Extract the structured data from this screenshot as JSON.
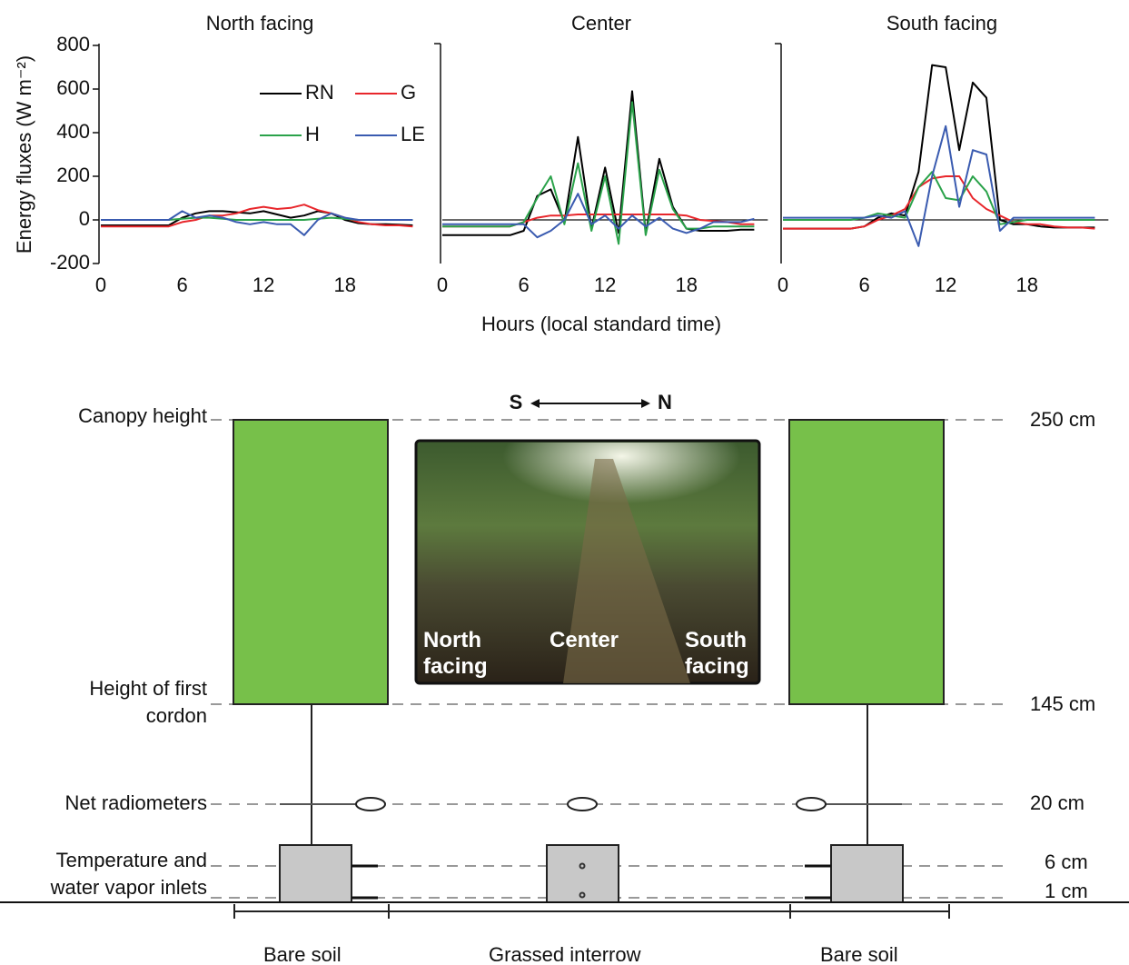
{
  "chart_data": [
    {
      "type": "line",
      "title": "North facing",
      "ylabel": "Energy fluxes (W m⁻²)",
      "x": [
        0,
        1,
        2,
        3,
        4,
        5,
        6,
        7,
        8,
        9,
        10,
        11,
        12,
        13,
        14,
        15,
        16,
        17,
        18,
        19,
        20,
        21,
        22,
        23
      ],
      "xlim": [
        0,
        24
      ],
      "xticks": [
        0,
        6,
        12,
        18
      ],
      "ylim": [
        -200,
        800
      ],
      "yticks": [
        -200,
        0,
        200,
        400,
        600,
        800
      ],
      "legend": true,
      "series": [
        {
          "name": "RN",
          "color": "#000000",
          "values": [
            -25,
            -25,
            -25,
            -25,
            -25,
            -25,
            10,
            30,
            40,
            40,
            35,
            30,
            40,
            25,
            10,
            20,
            40,
            30,
            0,
            -15,
            -20,
            -20,
            -22,
            -25
          ]
        },
        {
          "name": "G",
          "color": "#e8262b",
          "values": [
            -30,
            -30,
            -30,
            -30,
            -30,
            -30,
            -10,
            0,
            20,
            20,
            30,
            50,
            60,
            50,
            55,
            70,
            45,
            30,
            10,
            -10,
            -20,
            -25,
            -25,
            -30
          ]
        },
        {
          "name": "H",
          "color": "#2aa24a",
          "values": [
            0,
            0,
            0,
            0,
            0,
            0,
            5,
            10,
            10,
            5,
            0,
            0,
            0,
            0,
            0,
            0,
            5,
            10,
            5,
            0,
            0,
            0,
            0,
            0
          ]
        },
        {
          "name": "LE",
          "color": "#3a5bb0",
          "values": [
            0,
            0,
            0,
            0,
            0,
            0,
            40,
            10,
            20,
            10,
            -10,
            -20,
            -10,
            -20,
            -20,
            -70,
            0,
            30,
            10,
            0,
            0,
            0,
            0,
            0
          ]
        }
      ]
    },
    {
      "type": "line",
      "title": "Center",
      "xlabel": "Hours (local standard time)",
      "x": [
        0,
        1,
        2,
        3,
        4,
        5,
        6,
        7,
        8,
        9,
        10,
        11,
        12,
        13,
        14,
        15,
        16,
        17,
        18,
        19,
        20,
        21,
        22,
        23
      ],
      "xlim": [
        0,
        24
      ],
      "xticks": [
        0,
        6,
        12,
        18
      ],
      "ylim": [
        -200,
        800
      ],
      "zero_line": true,
      "series": [
        {
          "color": "#000000",
          "values": [
            -70,
            -70,
            -70,
            -70,
            -70,
            -70,
            -50,
            110,
            140,
            -10,
            380,
            -40,
            240,
            -60,
            590,
            -60,
            280,
            60,
            -40,
            -50,
            -50,
            -50,
            -45,
            -45
          ]
        },
        {
          "color": "#e8262b",
          "values": [
            -30,
            -30,
            -30,
            -30,
            -30,
            -30,
            -10,
            10,
            20,
            20,
            25,
            25,
            25,
            25,
            25,
            25,
            25,
            25,
            20,
            0,
            -5,
            -10,
            -20,
            -20
          ]
        },
        {
          "color": "#2aa24a",
          "values": [
            -30,
            -30,
            -30,
            -30,
            -30,
            -30,
            -10,
            100,
            200,
            -20,
            260,
            -50,
            200,
            -110,
            540,
            -70,
            230,
            50,
            -40,
            -40,
            -30,
            -30,
            -30,
            -30
          ]
        },
        {
          "color": "#3a5bb0",
          "values": [
            -20,
            -20,
            -20,
            -20,
            -20,
            -20,
            -20,
            -80,
            -50,
            0,
            120,
            -20,
            20,
            -40,
            20,
            -30,
            10,
            -40,
            -60,
            -40,
            -10,
            -10,
            -10,
            5
          ]
        }
      ]
    },
    {
      "type": "line",
      "title": "South facing",
      "x": [
        0,
        1,
        2,
        3,
        4,
        5,
        6,
        7,
        8,
        9,
        10,
        11,
        12,
        13,
        14,
        15,
        16,
        17,
        18,
        19,
        20,
        21,
        22,
        23
      ],
      "xlim": [
        0,
        24
      ],
      "xticks": [
        0,
        6,
        12,
        18
      ],
      "ylim": [
        -200,
        800
      ],
      "zero_line": true,
      "series": [
        {
          "color": "#000000",
          "values": [
            -40,
            -40,
            -40,
            -40,
            -40,
            -40,
            -30,
            10,
            30,
            20,
            220,
            710,
            700,
            320,
            630,
            560,
            0,
            -20,
            -20,
            -30,
            -35,
            -35,
            -35,
            -35
          ]
        },
        {
          "color": "#e8262b",
          "values": [
            -40,
            -40,
            -40,
            -40,
            -40,
            -40,
            -30,
            0,
            20,
            50,
            150,
            190,
            200,
            200,
            100,
            50,
            20,
            -10,
            -20,
            -20,
            -30,
            -35,
            -35,
            -40
          ]
        },
        {
          "color": "#2aa24a",
          "values": [
            0,
            0,
            0,
            0,
            0,
            0,
            10,
            30,
            20,
            10,
            150,
            220,
            100,
            90,
            200,
            130,
            -20,
            -10,
            0,
            0,
            0,
            0,
            0,
            0
          ]
        },
        {
          "color": "#3a5bb0",
          "values": [
            10,
            10,
            10,
            10,
            10,
            10,
            10,
            20,
            10,
            40,
            -120,
            200,
            430,
            60,
            320,
            300,
            -50,
            10,
            10,
            10,
            10,
            10,
            10,
            10
          ]
        }
      ]
    }
  ],
  "diagram": {
    "left_labels": [
      "Canopy height",
      "Height of first\ncordon",
      "Net radiometers",
      "Temperature and\nwater vapor inlets"
    ],
    "right_labels": [
      "250 cm",
      "145 cm",
      "20 cm",
      "6 cm",
      "1 cm"
    ],
    "bottom_labels": [
      "Bare soil",
      "Grassed interrow",
      "Bare soil"
    ],
    "direction": [
      "S",
      "N"
    ],
    "photo_labels": [
      "North\nfacing",
      "Center",
      "South\nfacing"
    ]
  }
}
